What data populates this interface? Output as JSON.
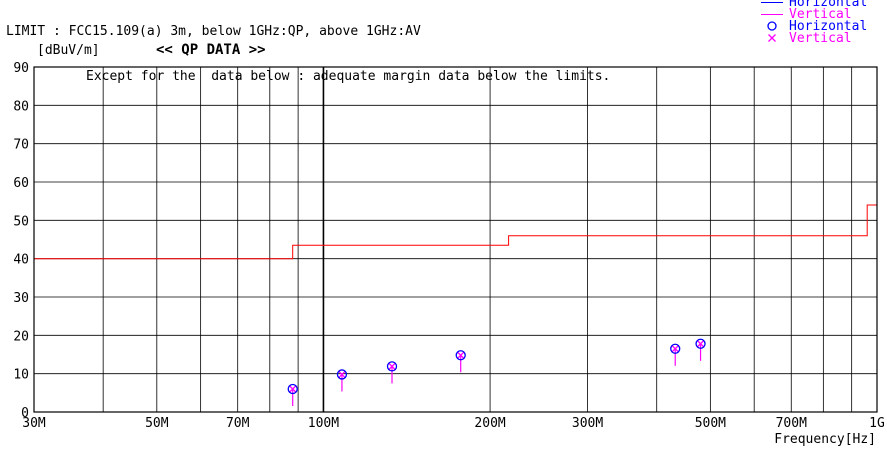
{
  "header": {
    "limit_line": "LIMIT : FCC15.109(a) 3m, below 1GHz:QP, above 1GHz:AV",
    "except_line": "Except for the  data below : adequate margin data below the limits."
  },
  "legend": [
    {
      "label": "Horizontal",
      "marker": "line",
      "color": "#0000ff"
    },
    {
      "label": "Vertical",
      "marker": "line",
      "color": "#ff00ff"
    },
    {
      "label": "Horizontal",
      "marker": "circle",
      "color": "#0000ff"
    },
    {
      "label": "Vertical",
      "marker": "cross",
      "color": "#ff00ff"
    }
  ],
  "colors": {
    "limit": "#ff0000",
    "horizontal": "#0000ff",
    "vertical": "#ff00ff",
    "grid": "#000000"
  },
  "chart_data": {
    "type": "scatter",
    "title": "<< QP DATA >>",
    "ylabel": "[dBuV/m]",
    "xlabel": "Frequency[Hz]",
    "x_scale": "log",
    "xlim": [
      30,
      1000
    ],
    "ylim": [
      0,
      90
    ],
    "grid": true,
    "y_ticks": [
      "0",
      "10",
      "20",
      "30",
      "40",
      "50",
      "60",
      "70",
      "80",
      "90"
    ],
    "x_tick_labels": [
      {
        "label": "30M",
        "value": 30
      },
      {
        "label": "50M",
        "value": 50
      },
      {
        "label": "70M",
        "value": 70
      },
      {
        "label": "100M",
        "value": 100
      },
      {
        "label": "200M",
        "value": 200
      },
      {
        "label": "300M",
        "value": 300
      },
      {
        "label": "500M",
        "value": 500
      },
      {
        "label": "700M",
        "value": 700
      },
      {
        "label": "1G",
        "value": 1000
      }
    ],
    "x_gridlines": [
      40,
      50,
      60,
      70,
      80,
      90,
      100,
      200,
      300,
      400,
      500,
      600,
      700,
      800,
      900
    ],
    "limit": {
      "name": "FCC15.109(a) 3m",
      "points": [
        [
          30,
          40
        ],
        [
          88,
          40
        ],
        [
          88,
          43.5
        ],
        [
          216,
          43.5
        ],
        [
          216,
          46
        ],
        [
          960,
          46
        ],
        [
          960,
          54
        ],
        [
          1000,
          54
        ]
      ]
    },
    "series": [
      {
        "name": "Horizontal",
        "marker": "circle",
        "points": [
          [
            88,
            6
          ],
          [
            108,
            9.8
          ],
          [
            133,
            11.9
          ],
          [
            177,
            14.8
          ],
          [
            432,
            16.5
          ],
          [
            480,
            17.8
          ]
        ]
      },
      {
        "name": "Vertical",
        "marker": "cross",
        "points": [
          [
            88,
            6
          ],
          [
            108,
            9.8
          ],
          [
            133,
            11.9
          ],
          [
            177,
            14.8
          ],
          [
            432,
            16.5
          ],
          [
            480,
            17.8
          ]
        ]
      }
    ]
  }
}
